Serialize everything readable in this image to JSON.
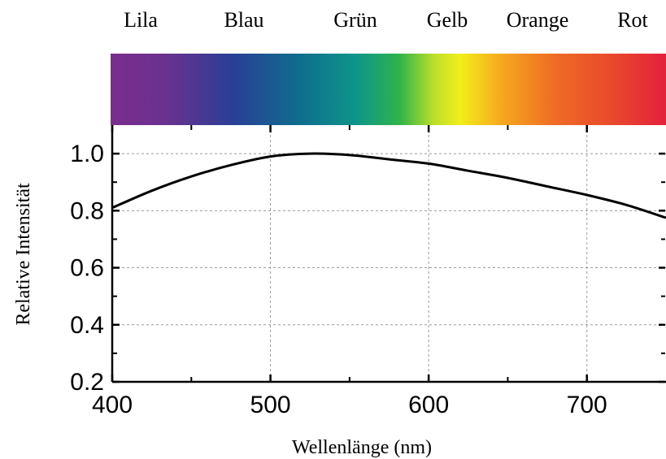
{
  "chart_data": {
    "type": "line",
    "spectrum_labels": [
      "Lila",
      "Blau",
      "Grün",
      "Gelb",
      "Orange",
      "Rot"
    ],
    "xlabel": "Wellenlänge (nm)",
    "ylabel": "Relative Intensität",
    "xlim": [
      400,
      750
    ],
    "ylim": [
      0.2,
      1.1
    ],
    "xticks": [
      "400",
      "500",
      "600",
      "700"
    ],
    "yticks": [
      "0.2",
      "0.4",
      "0.6",
      "0.8",
      "1.0"
    ],
    "grid": true,
    "series": [
      {
        "x": [
          400,
          425,
          450,
          475,
          500,
          525,
          550,
          575,
          600,
          625,
          650,
          675,
          700,
          725,
          750
        ],
        "y": [
          0.81,
          0.87,
          0.92,
          0.96,
          0.99,
          1.0,
          0.995,
          0.98,
          0.965,
          0.94,
          0.915,
          0.885,
          0.855,
          0.82,
          0.775
        ]
      }
    ],
    "colors": {
      "curve": "#000000",
      "grid": "#9a9a9a",
      "spectrum": [
        "#7b2d8e",
        "#6a318f",
        "#2a3f96",
        "#0f6d8e",
        "#0d958a",
        "#2fb34a",
        "#b9dd2a",
        "#f2ee1a",
        "#f6ab1e",
        "#ef6b25",
        "#e94a2c",
        "#e4213c"
      ]
    }
  }
}
